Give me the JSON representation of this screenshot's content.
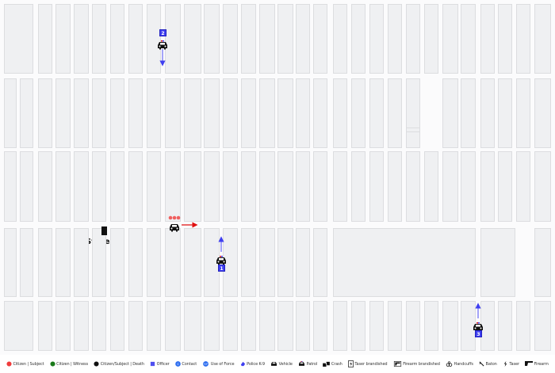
{
  "map": {
    "store_label": "Store",
    "officers": [
      {
        "id": "1",
        "heading": "north"
      },
      {
        "id": "2",
        "heading": "south"
      },
      {
        "id": "3",
        "heading": "north"
      }
    ],
    "subject_vehicle": {
      "heading": "east",
      "status": "Citizen | Subject"
    }
  },
  "colors": {
    "subject": "#f03c3c",
    "witness": "#1a7a1a",
    "death": "#111111",
    "officer": "#3f3ff0",
    "contact": "#2f6ff0"
  },
  "legend": [
    {
      "icon": "red-dot-icon",
      "label": "Citizen | Subject"
    },
    {
      "icon": "green-dot-icon",
      "label": "Citizen | Witness"
    },
    {
      "icon": "black-dot-icon",
      "label": "Citizen/Subject | Death"
    },
    {
      "icon": "blue-square-icon",
      "label": "Officer"
    },
    {
      "icon": "contact-icon",
      "label": "Contact"
    },
    {
      "icon": "use-of-force-icon",
      "label": "Use of Force",
      "glyph": "UoF"
    },
    {
      "icon": "k9-icon",
      "label": "Police K-9"
    },
    {
      "icon": "vehicle-icon",
      "label": "Vehicle"
    },
    {
      "icon": "patrol-car-icon",
      "label": "Patrol"
    },
    {
      "icon": "crash-icon",
      "label": "Crash"
    },
    {
      "icon": "taser-brandished-icon",
      "label": "Taser brandished"
    },
    {
      "icon": "firearm-brandished-icon",
      "label": "Firearm brandished"
    },
    {
      "icon": "handcuffs-icon",
      "label": "Handcuffs"
    },
    {
      "icon": "baton-icon",
      "label": "Baton"
    },
    {
      "icon": "taser-icon",
      "label": "Taser"
    },
    {
      "icon": "firearm-icon",
      "label": "Firearm"
    }
  ]
}
